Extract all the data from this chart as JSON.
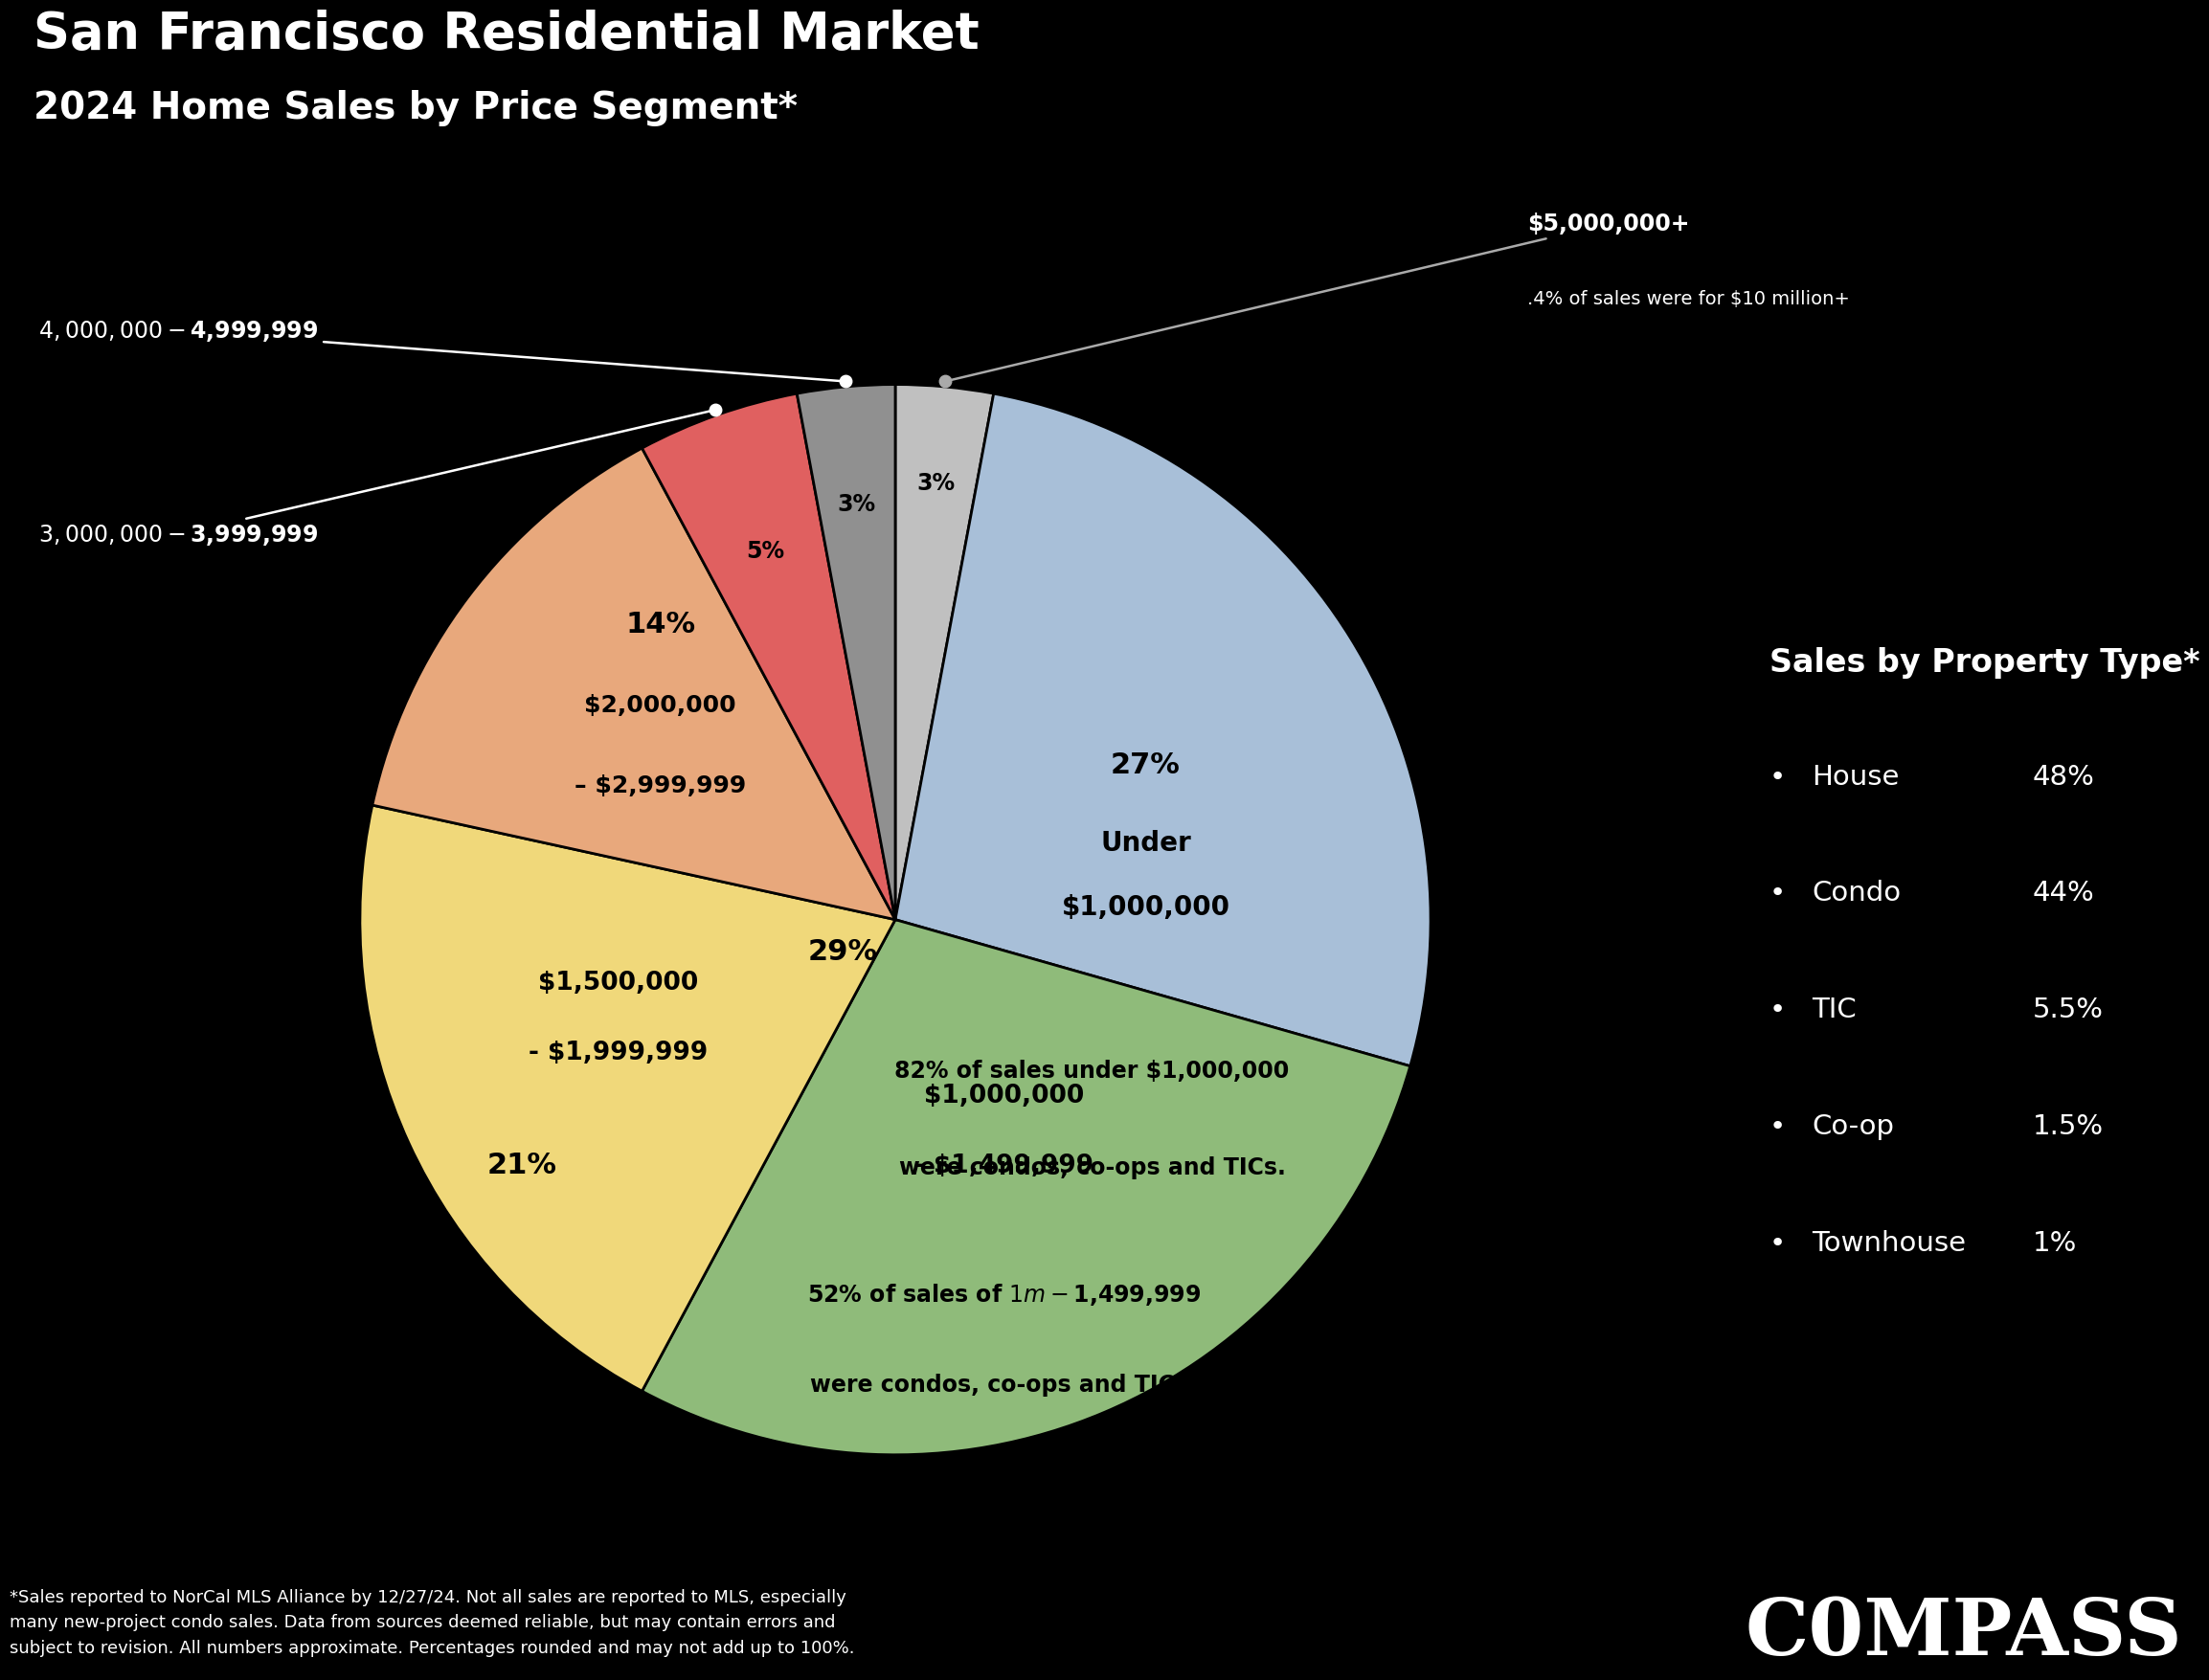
{
  "title_line1": "San Francisco Residential Market",
  "title_line2": "2024 Home Sales by Price Segment*",
  "background_color": "#000000",
  "segments_ordered": [
    {
      "label": "$5,000,000+",
      "pct": 3,
      "color": "#c0c0c0",
      "pct_label": "3%",
      "external": true,
      "external_side": "right",
      "sub_label": ".4% of sales were for $10 million+"
    },
    {
      "label": "Under\n$1,000,000",
      "pct": 27,
      "color": "#a8bfd8",
      "pct_label": "27%",
      "external": false,
      "sub_label": "82% of sales under $1,000,000\nwere condos, co-ops and TICs."
    },
    {
      "label": "$1,000,000\n- $1,499,999",
      "pct": 29,
      "color": "#8fbb7a",
      "pct_label": "29%",
      "external": false,
      "sub_label": "52% of sales of $1m - $1,499,999\nwere condos, co-ops and TICs."
    },
    {
      "label": "$1,500,000\n- $1,999,999",
      "pct": 21,
      "color": "#f0d87a",
      "pct_label": "21%",
      "external": false,
      "sub_label": ""
    },
    {
      "label": "$2,000,000\n– $2,999,999",
      "pct": 14,
      "color": "#e8a87c",
      "pct_label": "14%",
      "external": false,
      "sub_label": ""
    },
    {
      "label": "$3,000,000 - $3,999,999",
      "pct": 5,
      "color": "#e06060",
      "pct_label": "5%",
      "external": true,
      "external_side": "left",
      "sub_label": ""
    },
    {
      "label": "$4,000,000 - $4,999,999",
      "pct": 3,
      "color": "#909090",
      "pct_label": "3%",
      "external": true,
      "external_side": "left",
      "sub_label": ""
    }
  ],
  "property_type_title": "Sales by Property Type*",
  "property_types": [
    {
      "name": "House",
      "pct": "48%"
    },
    {
      "name": "Condo",
      "pct": "44%"
    },
    {
      "name": "TIC",
      "pct": "5.5%"
    },
    {
      "name": "Co-op",
      "pct": "1.5%"
    },
    {
      "name": "Townhouse",
      "pct": "1%"
    }
  ],
  "footnote": "*Sales reported to NorCal MLS Alliance by 12/27/24. Not all sales are reported to MLS, especially\nmany new-project condo sales. Data from sources deemed reliable, but may contain errors and\nsubject to revision. All numbers approximate. Percentages rounded and may not add up to 100%.",
  "compass_text": "C0MPASS"
}
